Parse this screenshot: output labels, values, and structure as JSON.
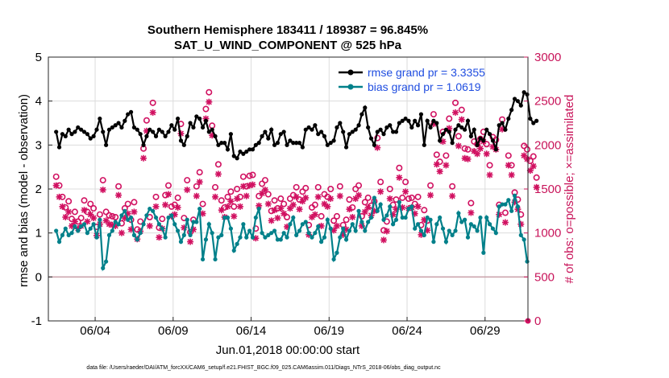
{
  "chart_data": {
    "type": "line",
    "title_line1": "Southern Hemisphere 183411 / 189387 = 96.845%",
    "title_line2": "SAT_U_WIND_COMPONENT @ 525 hPa",
    "ylabel_left": "rmse and bias (model - observation)",
    "ylabel_right": "# of obs: o=possible; ×=assimilated",
    "xlabel": "Jun.01,2018 00:00:00 start",
    "footnote": "data file: /Users/raeder/DAI/ATM_forcXX/CAM6_setup/f.e21.FHIST_BGC.f09_025.CAM6assim.011/Diags_NTrS_2018-06/obs_diag_output.nc",
    "ylim_left": [
      -1,
      5
    ],
    "ylim_right": [
      0,
      3000
    ],
    "xlim": [
      0,
      30.75
    ],
    "yticks_left": [
      "-1",
      "0",
      "1",
      "2",
      "3",
      "4",
      "5"
    ],
    "yticks_right": [
      "0",
      "500",
      "1000",
      "1500",
      "2000",
      "2500",
      "3000"
    ],
    "xticks": [
      {
        "x": 3,
        "label": "06/04"
      },
      {
        "x": 8,
        "label": "06/09"
      },
      {
        "x": 13,
        "label": "06/14"
      },
      {
        "x": 18,
        "label": "06/19"
      },
      {
        "x": 23,
        "label": "06/24"
      },
      {
        "x": 28,
        "label": "06/29"
      }
    ],
    "zero_line": 0,
    "legend": {
      "location": "top-right",
      "entries": [
        "rmse grand pr = 3.3355",
        "bias grand pr = 1.0619"
      ]
    },
    "colors": {
      "rmse": "#000000",
      "bias": "#00808a",
      "obs": "#d11161",
      "zero_line": "#c8a0a8",
      "grid": "#dcdcdc"
    },
    "time_step_days": 0.25,
    "series": [
      {
        "name": "rmse",
        "axis": "left",
        "values": [
          3.3,
          2.95,
          3.25,
          3.2,
          3.35,
          3.25,
          3.3,
          3.4,
          3.35,
          3.3,
          3.25,
          3.15,
          3.2,
          3.35,
          3.6,
          3.3,
          3.0,
          3.35,
          3.4,
          3.45,
          3.5,
          3.4,
          3.55,
          3.7,
          3.75,
          3.4,
          3.35,
          3.25,
          3.0,
          3.2,
          3.35,
          3.3,
          3.2,
          3.35,
          3.3,
          3.2,
          3.3,
          3.45,
          3.35,
          3.6,
          3.1,
          3.0,
          3.2,
          3.5,
          3.4,
          3.65,
          3.6,
          3.4,
          3.55,
          3.3,
          3.35,
          3.2,
          3.0,
          3.05,
          3.05,
          2.9,
          3.25,
          2.75,
          2.7,
          2.85,
          2.8,
          2.85,
          2.9,
          2.9,
          3.0,
          3.05,
          3.2,
          3.3,
          3.15,
          3.35,
          3.0,
          3.05,
          3.25,
          3.3,
          3.0,
          3.1,
          3.05,
          3.05,
          3.05,
          2.95,
          3.35,
          3.4,
          3.35,
          3.45,
          3.25,
          3.3,
          3.2,
          3.0,
          3.05,
          3.1,
          3.4,
          3.5,
          3.3,
          2.95,
          3.25,
          3.3,
          3.35,
          3.45,
          3.7,
          3.85,
          3.4,
          3.15,
          3.0,
          3.3,
          3.35,
          3.25,
          3.4,
          3.45,
          3.3,
          3.3,
          3.5,
          3.55,
          3.6,
          3.55,
          3.4,
          3.55,
          3.45,
          3.7,
          3.0,
          3.55,
          3.4,
          3.55,
          3.5,
          3.1,
          3.25,
          3.35,
          3.3,
          3.05,
          3.35,
          3.45,
          3.4,
          3.35,
          3.55,
          3.2,
          3.35,
          3.0,
          3.15,
          3.1,
          3.35,
          3.25,
          3.1,
          2.9,
          3.45,
          3.5,
          3.35,
          3.6,
          3.8,
          4.05,
          4.0,
          3.9,
          4.2,
          4.15,
          3.6,
          3.5,
          3.55
        ]
      },
      {
        "name": "bias",
        "axis": "left",
        "values": [
          1.05,
          0.8,
          0.95,
          1.1,
          0.95,
          1.0,
          1.15,
          1.05,
          1.15,
          1.2,
          1.0,
          1.1,
          1.2,
          0.9,
          1.3,
          0.2,
          0.35,
          0.95,
          1.05,
          1.25,
          1.2,
          1.4,
          1.5,
          1.3,
          1.35,
          0.95,
          0.85,
          1.0,
          1.2,
          1.4,
          1.55,
          1.5,
          1.35,
          1.2,
          1.1,
          0.9,
          1.35,
          1.4,
          1.2,
          1.05,
          0.8,
          0.95,
          1.3,
          0.95,
          1.25,
          1.25,
          1.55,
          0.4,
          0.85,
          1.2,
          1.0,
          0.4,
          0.9,
          0.95,
          1.35,
          1.35,
          1.1,
          0.6,
          0.75,
          0.9,
          1.2,
          0.9,
          1.05,
          0.9,
          1.35,
          1.55,
          1.0,
          0.9,
          0.95,
          1.0,
          1.05,
          0.85,
          0.85,
          1.0,
          0.9,
          1.2,
          1.35,
          0.95,
          1.05,
          1.2,
          1.25,
          1.0,
          0.9,
          1.0,
          1.15,
          0.8,
          0.9,
          1.3,
          1.1,
          0.4,
          0.55,
          0.9,
          1.1,
          0.85,
          1.05,
          1.2,
          1.05,
          1.5,
          1.25,
          1.05,
          1.25,
          1.35,
          1.8,
          1.5,
          1.65,
          1.3,
          1.4,
          1.6,
          1.2,
          1.3,
          1.7,
          1.35,
          1.35,
          1.55,
          1.6,
          1.1,
          1.2,
          1.05,
          0.95,
          1.35,
          1.3,
          0.8,
          1.2,
          1.35,
          1.1,
          0.8,
          1.05,
          0.95,
          1.05,
          1.45,
          1.25,
          1.3,
          0.9,
          1.2,
          1.15,
          1.05,
          1.35,
          0.55,
          1.35,
          1.2,
          1.1,
          1.0,
          1.6,
          1.65,
          1.65,
          1.75,
          1.5,
          1.85,
          1.6,
          0.95,
          0.85,
          0.35
        ]
      },
      {
        "name": "obs_possible",
        "axis": "right",
        "marker": "o",
        "values": [
          1640,
          1540,
          1410,
          1290,
          1360,
          1160,
          1240,
          1130,
          1170,
          1370,
          1240,
          1330,
          1280,
          1070,
          1210,
          1600,
          1240,
          1200,
          1190,
          1180,
          1530,
          1110,
          1280,
          1330,
          1150,
          1350,
          1040,
          1130,
          1960,
          2280,
          1180,
          2480,
          1410,
          1060,
          1160,
          1430,
          1540,
          1300,
          1320,
          1400,
          2240,
          1170,
          1600,
          1010,
          1150,
          1530,
          1690,
          1330,
          2410,
          2600,
          2220,
          1520,
          1780,
          1370,
          1290,
          1410,
          1470,
          1300,
          1500,
          1410,
          1640,
          1530,
          1650,
          1660,
          1050,
          1420,
          1560,
          1600,
          1440,
          1250,
          1370,
          1280,
          1390,
          1330,
          1180,
          1390,
          1430,
          1520,
          1380,
          1470,
          1510,
          1090,
          1290,
          1320,
          1520,
          1190,
          1440,
          1410,
          1500,
          1140,
          1190,
          1530,
          1090,
          1150,
          1380,
          1290,
          1500,
          1540,
          1190,
          1350,
          1400,
          1310,
          1360,
          2080,
          1580,
          1030,
          1130,
          1500,
          1320,
          1380,
          1740,
          1400,
          1580,
          1390,
          1400,
          1330,
          1410,
          1090,
          1260,
          1140,
          1540,
          2350,
          1890,
          1810,
          2150,
          1880,
          2300,
          1530,
          2480,
          2100,
          2400,
          1960,
          1950,
          1340,
          2040,
          2010,
          2070,
          2150,
          2010,
          1770,
          2090,
          2060,
          1320,
          2290,
          1230,
          1880,
          1770,
          1460,
          1380,
          1210,
          1990,
          1950,
          1820,
          1870,
          1630
        ]
      },
      {
        "name": "obs_assimilated",
        "axis": "right",
        "marker": "x",
        "values": [
          1540,
          1410,
          1300,
          1180,
          1240,
          1080,
          1130,
          1050,
          1080,
          1260,
          1130,
          1210,
          1170,
          970,
          1100,
          1490,
          1140,
          1100,
          1090,
          1080,
          1430,
          1000,
          1170,
          1220,
          1040,
          1240,
          930,
          1020,
          1850,
          2160,
          1080,
          2370,
          1300,
          950,
          1050,
          1320,
          1440,
          1190,
          1210,
          1290,
          2130,
          1060,
          1490,
          900,
          1040,
          1420,
          1580,
          1220,
          2300,
          2490,
          2110,
          1410,
          1670,
          1260,
          1180,
          1300,
          1360,
          1190,
          1390,
          1300,
          1530,
          1420,
          1540,
          1550,
          940,
          1310,
          1450,
          1490,
          1330,
          1140,
          1260,
          1170,
          1280,
          1220,
          1070,
          1280,
          1320,
          1410,
          1270,
          1360,
          1400,
          980,
          1180,
          1210,
          1410,
          1080,
          1330,
          1300,
          1390,
          1030,
          1080,
          1420,
          980,
          1040,
          1270,
          1180,
          1390,
          1430,
          1080,
          1240,
          1290,
          1200,
          1250,
          1970,
          1470,
          920,
          1020,
          1390,
          1210,
          1270,
          1630,
          1290,
          1470,
          1280,
          1290,
          1220,
          1300,
          980,
          1150,
          1030,
          1430,
          2240,
          1780,
          1700,
          2040,
          1770,
          2190,
          1420,
          2370,
          1990,
          2290,
          1850,
          1840,
          1230,
          1930,
          1900,
          1960,
          2040,
          1900,
          1660,
          1980,
          1950,
          1210,
          2180,
          1120,
          1770,
          1660,
          1350,
          1270,
          1100,
          1880,
          1840,
          1710,
          1760,
          1520
        ]
      }
    ],
    "last_point_right": 0
  }
}
